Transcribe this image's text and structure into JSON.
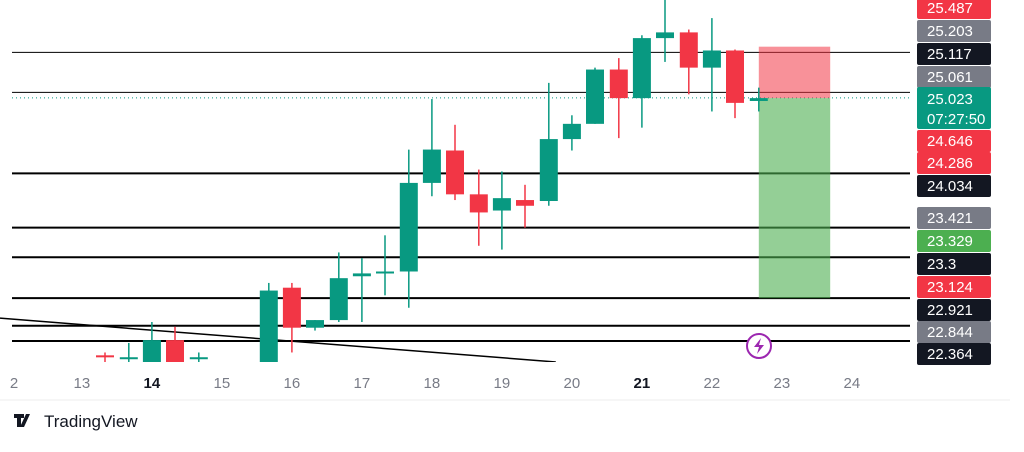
{
  "chart_data": {
    "type": "candlestick",
    "xlim": [
      11.83,
      24.83
    ],
    "ylim": [
      22.25,
      26.05
    ],
    "xticks": [
      {
        "value": 12,
        "label": "2"
      },
      13,
      14,
      15,
      16,
      17,
      18,
      19,
      20,
      21,
      22,
      23,
      24
    ],
    "xticks_bold": [
      14,
      21
    ],
    "up_color": "#089981",
    "down_color": "#f23645",
    "candles": {
      "x": [
        13.33,
        13.67,
        14,
        14.33,
        14.67,
        15.67,
        16,
        16.33,
        16.67,
        17,
        17.33,
        17.67,
        18,
        18.33,
        18.67,
        19,
        19.33,
        19.67,
        20,
        20.33,
        20.67,
        21,
        21.33,
        21.67,
        22,
        22.33,
        22.67
      ],
      "open": [
        22.32,
        22.3,
        22.25,
        22.48,
        22.3,
        22.25,
        23.03,
        22.61,
        22.69,
        23.15,
        23.18,
        23.2,
        24.13,
        24.47,
        24.01,
        23.84,
        23.95,
        23.94,
        24.59,
        24.75,
        25.32,
        25.02,
        25.65,
        25.71,
        25.34,
        25.52,
        24.99
      ],
      "high": [
        22.35,
        22.45,
        22.67,
        22.62,
        22.35,
        23.08,
        23.08,
        22.69,
        23.4,
        23.34,
        23.58,
        24.48,
        25.01,
        24.74,
        24.27,
        24.25,
        24.11,
        25.18,
        24.84,
        25.34,
        25.44,
        25.68,
        26.05,
        25.74,
        25.86,
        25.53,
        25.13
      ],
      "low": [
        22.25,
        22.25,
        22.25,
        22.25,
        22.25,
        22.25,
        22.35,
        22.58,
        22.67,
        22.67,
        22.95,
        22.82,
        23.99,
        23.95,
        23.47,
        23.43,
        23.66,
        23.89,
        24.47,
        24.75,
        24.6,
        24.71,
        25.4,
        25.06,
        24.88,
        24.81,
        24.88
      ],
      "close": [
        22.31,
        22.3,
        22.48,
        22.25,
        22.3,
        23.0,
        22.61,
        22.69,
        23.13,
        23.18,
        23.2,
        24.13,
        24.48,
        24.01,
        23.82,
        23.97,
        23.89,
        24.59,
        24.75,
        25.32,
        25.02,
        25.65,
        25.71,
        25.34,
        25.52,
        24.97,
        25.02
      ]
    },
    "levels": [
      25.5,
      25.08,
      24.23,
      23.66,
      23.35,
      22.92,
      22.63,
      22.47
    ],
    "trendline": {
      "x": [
        11.83,
        19.77
      ],
      "y": [
        22.71,
        22.25
      ]
    },
    "position": {
      "x": [
        22.67,
        23.69
      ],
      "entry": 25.02,
      "stop": 25.56,
      "target": 22.92
    },
    "current_price": 25.023,
    "countdown": "07:27:50",
    "price_labels": [
      {
        "value": 25.487,
        "color": "#f23645"
      },
      {
        "value": 25.203,
        "color": "#787b86"
      },
      {
        "value": 25.117,
        "color": "#131722"
      },
      {
        "value": 25.061,
        "color": "#787b86"
      },
      {
        "value": 25.023,
        "color": "#089981"
      },
      {
        "value": 24.646,
        "color": "#f23645"
      },
      {
        "value": 24.286,
        "color": "#f23645"
      },
      {
        "value": 24.034,
        "color": "#131722"
      },
      {
        "value": 23.421,
        "color": "#787b86"
      },
      {
        "value": 23.329,
        "color": "#4caf50"
      },
      {
        "value": 23.3,
        "color": "#131722"
      },
      {
        "value": 23.124,
        "color": "#f23645"
      },
      {
        "value": 22.921,
        "color": "#131722"
      },
      {
        "value": 22.844,
        "color": "#787b86"
      },
      {
        "value": 22.364,
        "color": "#131722"
      }
    ]
  },
  "brand": "TradingView"
}
